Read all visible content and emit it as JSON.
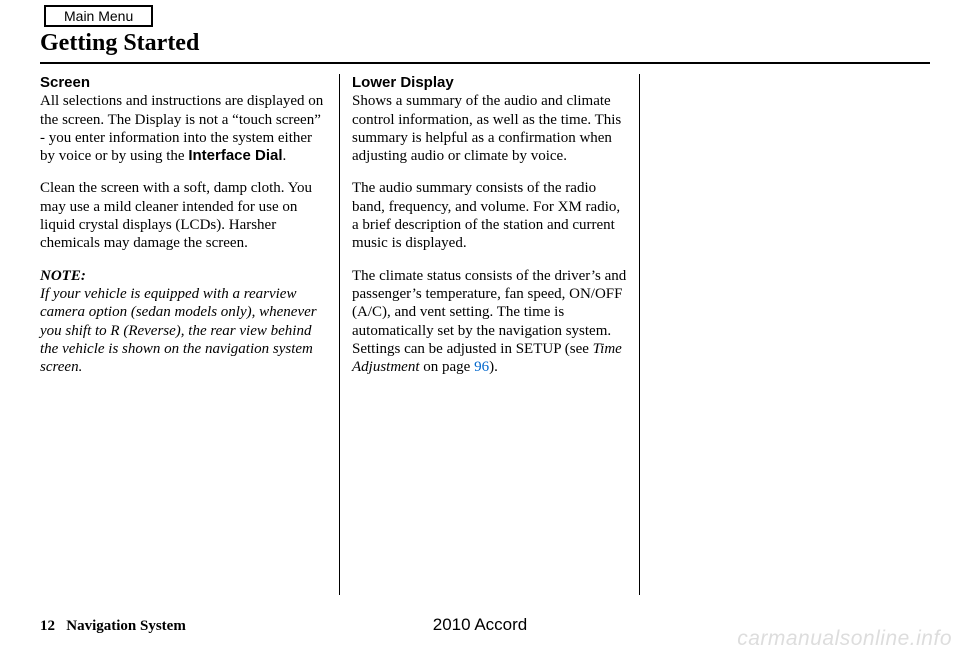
{
  "mainMenu": {
    "label": "Main Menu"
  },
  "pageTitle": "Getting Started",
  "col1": {
    "heading": "Screen",
    "p1a": "All selections and instructions are displayed on the screen. The Display is not a “touch screen” - you enter information into the system either by voice or by using the ",
    "p1b": "Interface Dial",
    "p1c": ".",
    "p2": "Clean the screen with a soft, damp cloth. You may use a mild cleaner intended for use on liquid crystal displays (LCDs). Harsher chemicals may damage the screen.",
    "noteLabel": "NOTE:",
    "noteBody": "If your vehicle is equipped with a rearview camera option (sedan models only), whenever you shift to R (Reverse), the rear view behind the vehicle is shown on the navigation system screen."
  },
  "col2": {
    "heading": "Lower Display",
    "p1": "Shows a summary of the audio and climate control information, as well as the time. This summary is helpful as a confirmation when adjusting audio or climate by voice.",
    "p2": "The audio summary consists of the radio band, frequency, and volume. For XM radio, a brief description of the station and current music is displayed.",
    "p3a": "The climate status consists of the driver’s and passenger’s temperature, fan speed, ON/OFF (A/C), and vent setting. The time is automatically set by the navigation system. Settings can be adjusted in SETUP (see ",
    "p3b": "Time Adjustment",
    "p3c": " on page ",
    "p3d": "96",
    "p3e": ")."
  },
  "footer": {
    "pageNum": "12",
    "section": "Navigation System",
    "model": "2010 Accord"
  },
  "watermark": "carmanualsonline.info"
}
